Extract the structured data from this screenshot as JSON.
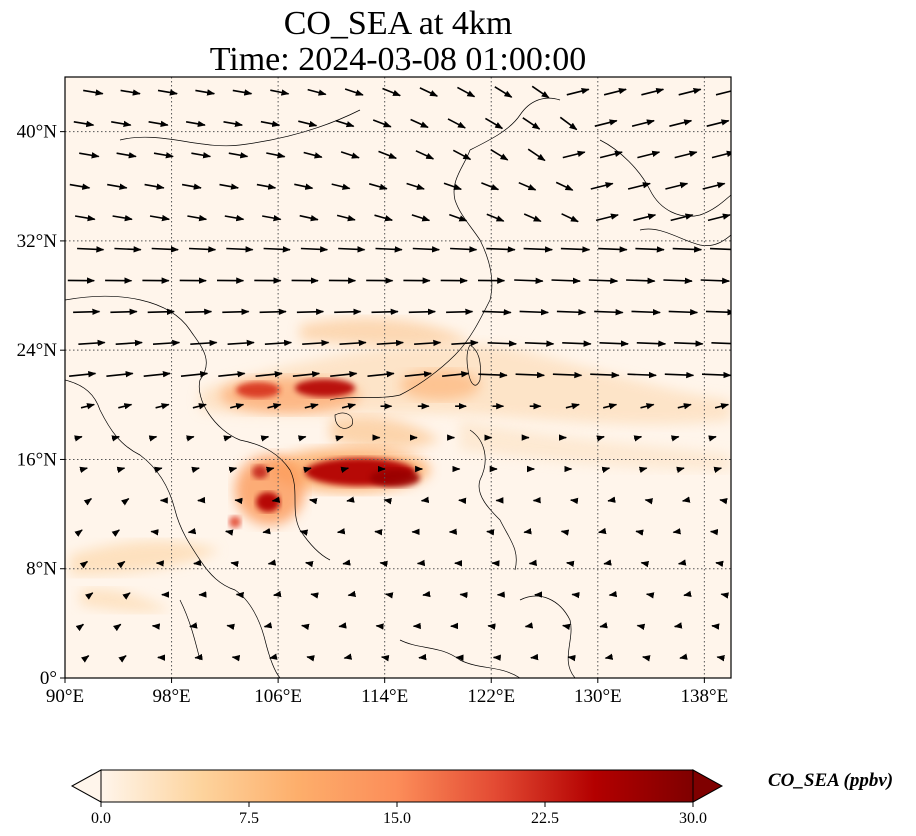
{
  "title": {
    "line1": "CO_SEA at 4km",
    "line2": "Time: 2024-03-08 01:00:00"
  },
  "map": {
    "extent": {
      "lon": [
        90,
        140
      ],
      "lat": [
        0,
        44
      ]
    },
    "lon_ticks": [
      {
        "value": 90,
        "label": "90°E"
      },
      {
        "value": 98,
        "label": "98°E"
      },
      {
        "value": 106,
        "label": "106°E"
      },
      {
        "value": 114,
        "label": "114°E"
      },
      {
        "value": 122,
        "label": "122°E"
      },
      {
        "value": 130,
        "label": "130°E"
      },
      {
        "value": 138,
        "label": "138°E"
      }
    ],
    "lat_ticks": [
      {
        "value": 0,
        "label": "0°"
      },
      {
        "value": 8,
        "label": "8°N"
      },
      {
        "value": 16,
        "label": "16°N"
      },
      {
        "value": 24,
        "label": "24°N"
      },
      {
        "value": 32,
        "label": "32°N"
      },
      {
        "value": 40,
        "label": "40°N"
      }
    ],
    "background_color": "#fff5eb",
    "gridlines": "dotted",
    "wind_vectors": "quiver arrows",
    "colormap": "OrRd"
  },
  "colorbar": {
    "label": "CO_SEA (ppbv)",
    "ticks": [
      "0.0",
      "7.5",
      "15.0",
      "22.5",
      "30.0"
    ],
    "range": [
      0,
      30
    ],
    "extend": "both",
    "colors": [
      "#fff5eb",
      "#fdd49e",
      "#fdae6b",
      "#fc8d59",
      "#e34a33",
      "#b30000",
      "#7f0000"
    ]
  }
}
